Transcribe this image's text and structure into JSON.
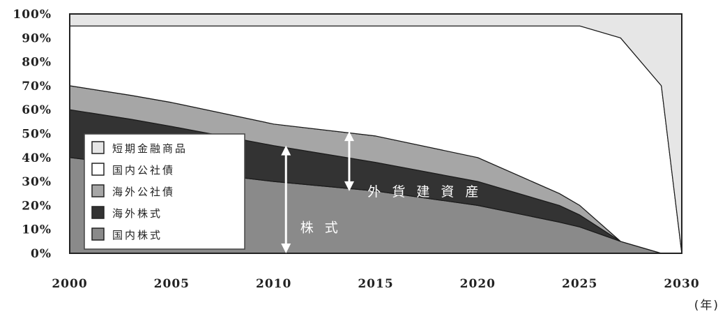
{
  "chart_data": {
    "type": "area",
    "stacked": true,
    "x_unit_label": "(年)",
    "x": [
      2000,
      2003,
      2005,
      2010,
      2015,
      2020,
      2024,
      2025,
      2027,
      2029,
      2030
    ],
    "xticks": [
      2000,
      2005,
      2010,
      2015,
      2020,
      2025,
      2030
    ],
    "yticks": [
      "0%",
      "10%",
      "20%",
      "30%",
      "40%",
      "50%",
      "60%",
      "70%",
      "80%",
      "90%",
      "100%"
    ],
    "xlim": [
      2000,
      2030
    ],
    "ylim": [
      0,
      100
    ],
    "series": [
      {
        "name": "国内株式",
        "color": "#8a8a8a",
        "values": [
          40,
          37,
          35,
          30,
          26,
          20,
          13,
          11,
          5,
          0,
          0
        ]
      },
      {
        "name": "海外株式",
        "color": "#333333",
        "values": [
          20,
          19,
          18,
          15,
          12,
          10,
          7,
          5,
          0,
          0,
          0
        ]
      },
      {
        "name": "海外公社債",
        "color": "#a6a6a6",
        "values": [
          10,
          10,
          10,
          9,
          11,
          10,
          5,
          4,
          0,
          0,
          0
        ]
      },
      {
        "name": "国内公社債",
        "color": "#ffffff",
        "values": [
          25,
          29,
          32,
          41,
          46,
          55,
          70,
          75,
          85,
          70,
          0
        ]
      },
      {
        "name": "短期金融商品",
        "color": "#e6e6e6",
        "values": [
          5,
          5,
          5,
          5,
          5,
          5,
          5,
          5,
          10,
          30,
          100
        ]
      }
    ],
    "legend": {
      "placement": "lower-left",
      "order": [
        "短期金融商品",
        "国内公社債",
        "海外公社債",
        "海外株式",
        "国内株式"
      ]
    },
    "annotations": [
      {
        "text": "外 貨 建 資 産",
        "arrow_x": 2013.7,
        "arrow_y": [
          26,
          51
        ],
        "label_x": 2014.6,
        "label_y": 26
      },
      {
        "text": "株 式",
        "arrow_x": 2010.6,
        "arrow_y": [
          0,
          45
        ],
        "label_x": 2011.3,
        "label_y": 11
      }
    ]
  }
}
